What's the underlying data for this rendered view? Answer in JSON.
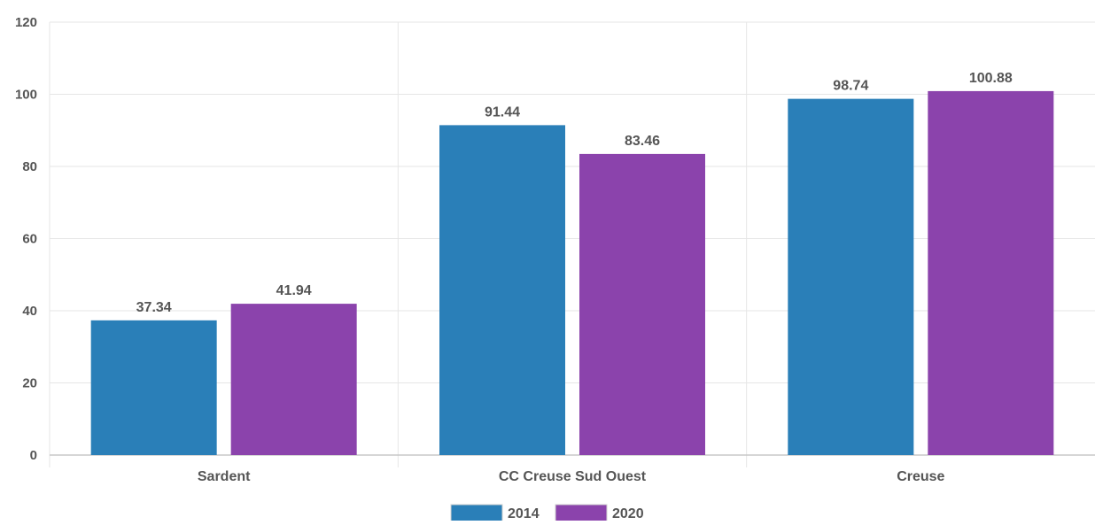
{
  "chart_data": {
    "type": "bar",
    "categories": [
      "Sardent",
      "CC Creuse Sud Ouest",
      "Creuse"
    ],
    "series": [
      {
        "name": "2014",
        "values": [
          37.34,
          91.44,
          98.74
        ],
        "color": "#2a7fb8"
      },
      {
        "name": "2020",
        "values": [
          41.94,
          83.46,
          100.88
        ],
        "color": "#8b43ac"
      }
    ],
    "data_labels": [
      [
        "37.34",
        "91.44",
        "98.74"
      ],
      [
        "41.94",
        "83.46",
        "100.88"
      ]
    ],
    "y_ticks": [
      0,
      20,
      40,
      60,
      80,
      100,
      120
    ],
    "ylim": [
      0,
      120
    ],
    "grid": true,
    "legend": "bottom-center",
    "title": "",
    "xlabel": "",
    "ylabel": ""
  }
}
